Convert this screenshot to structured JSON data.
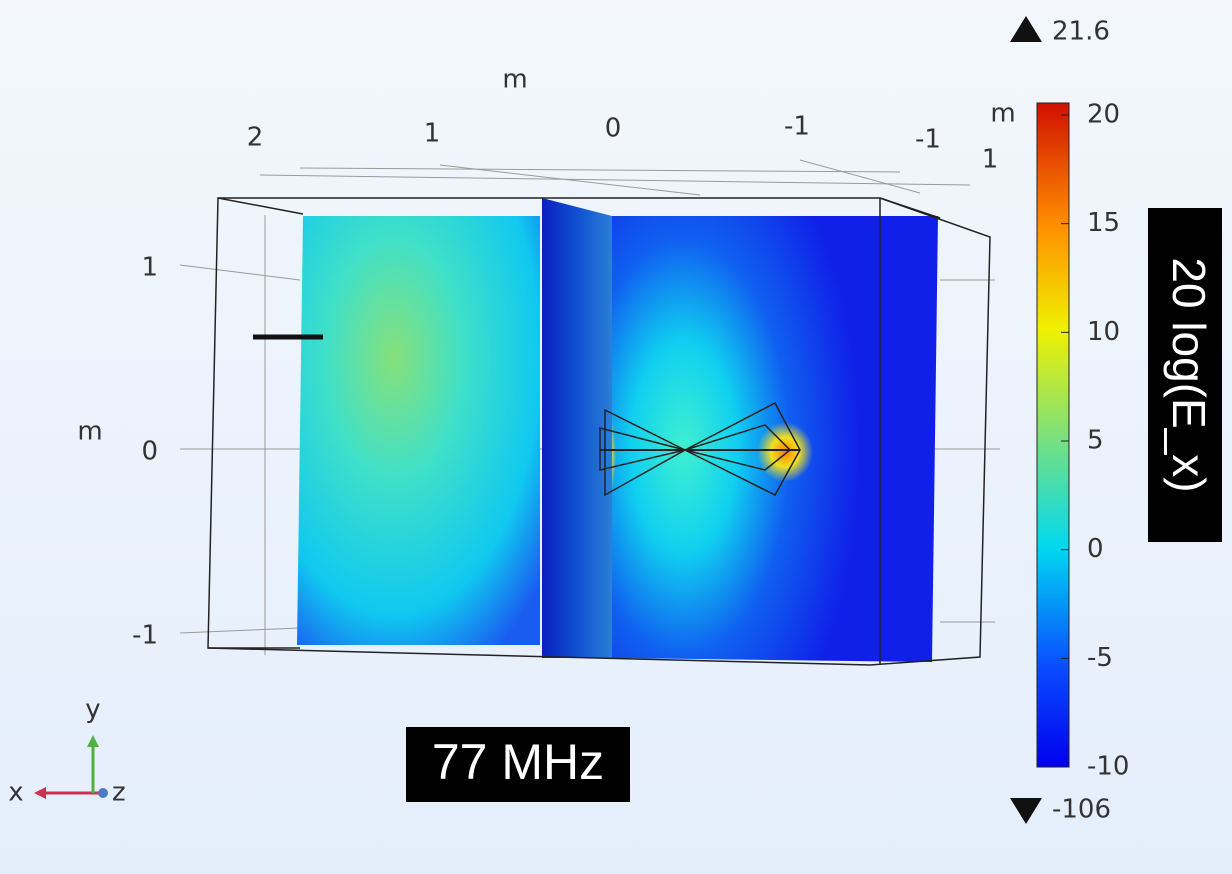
{
  "axes": {
    "x_unit": "m",
    "x_ticks": [
      "2",
      "1",
      "0",
      "-1",
      "-1"
    ],
    "z_tick": "1",
    "z_unit": "m",
    "y_unit": "m",
    "y_ticks": [
      "1",
      "0",
      "-1"
    ]
  },
  "colorbar": {
    "max": "21.6",
    "min": "-106",
    "ticks": [
      "20",
      "15",
      "10",
      "5",
      "0",
      "-5",
      "-10"
    ],
    "title": "20 log(E_x)"
  },
  "annotation": "77 MHz",
  "triad": {
    "x": "x",
    "y": "y",
    "z": "z"
  }
}
